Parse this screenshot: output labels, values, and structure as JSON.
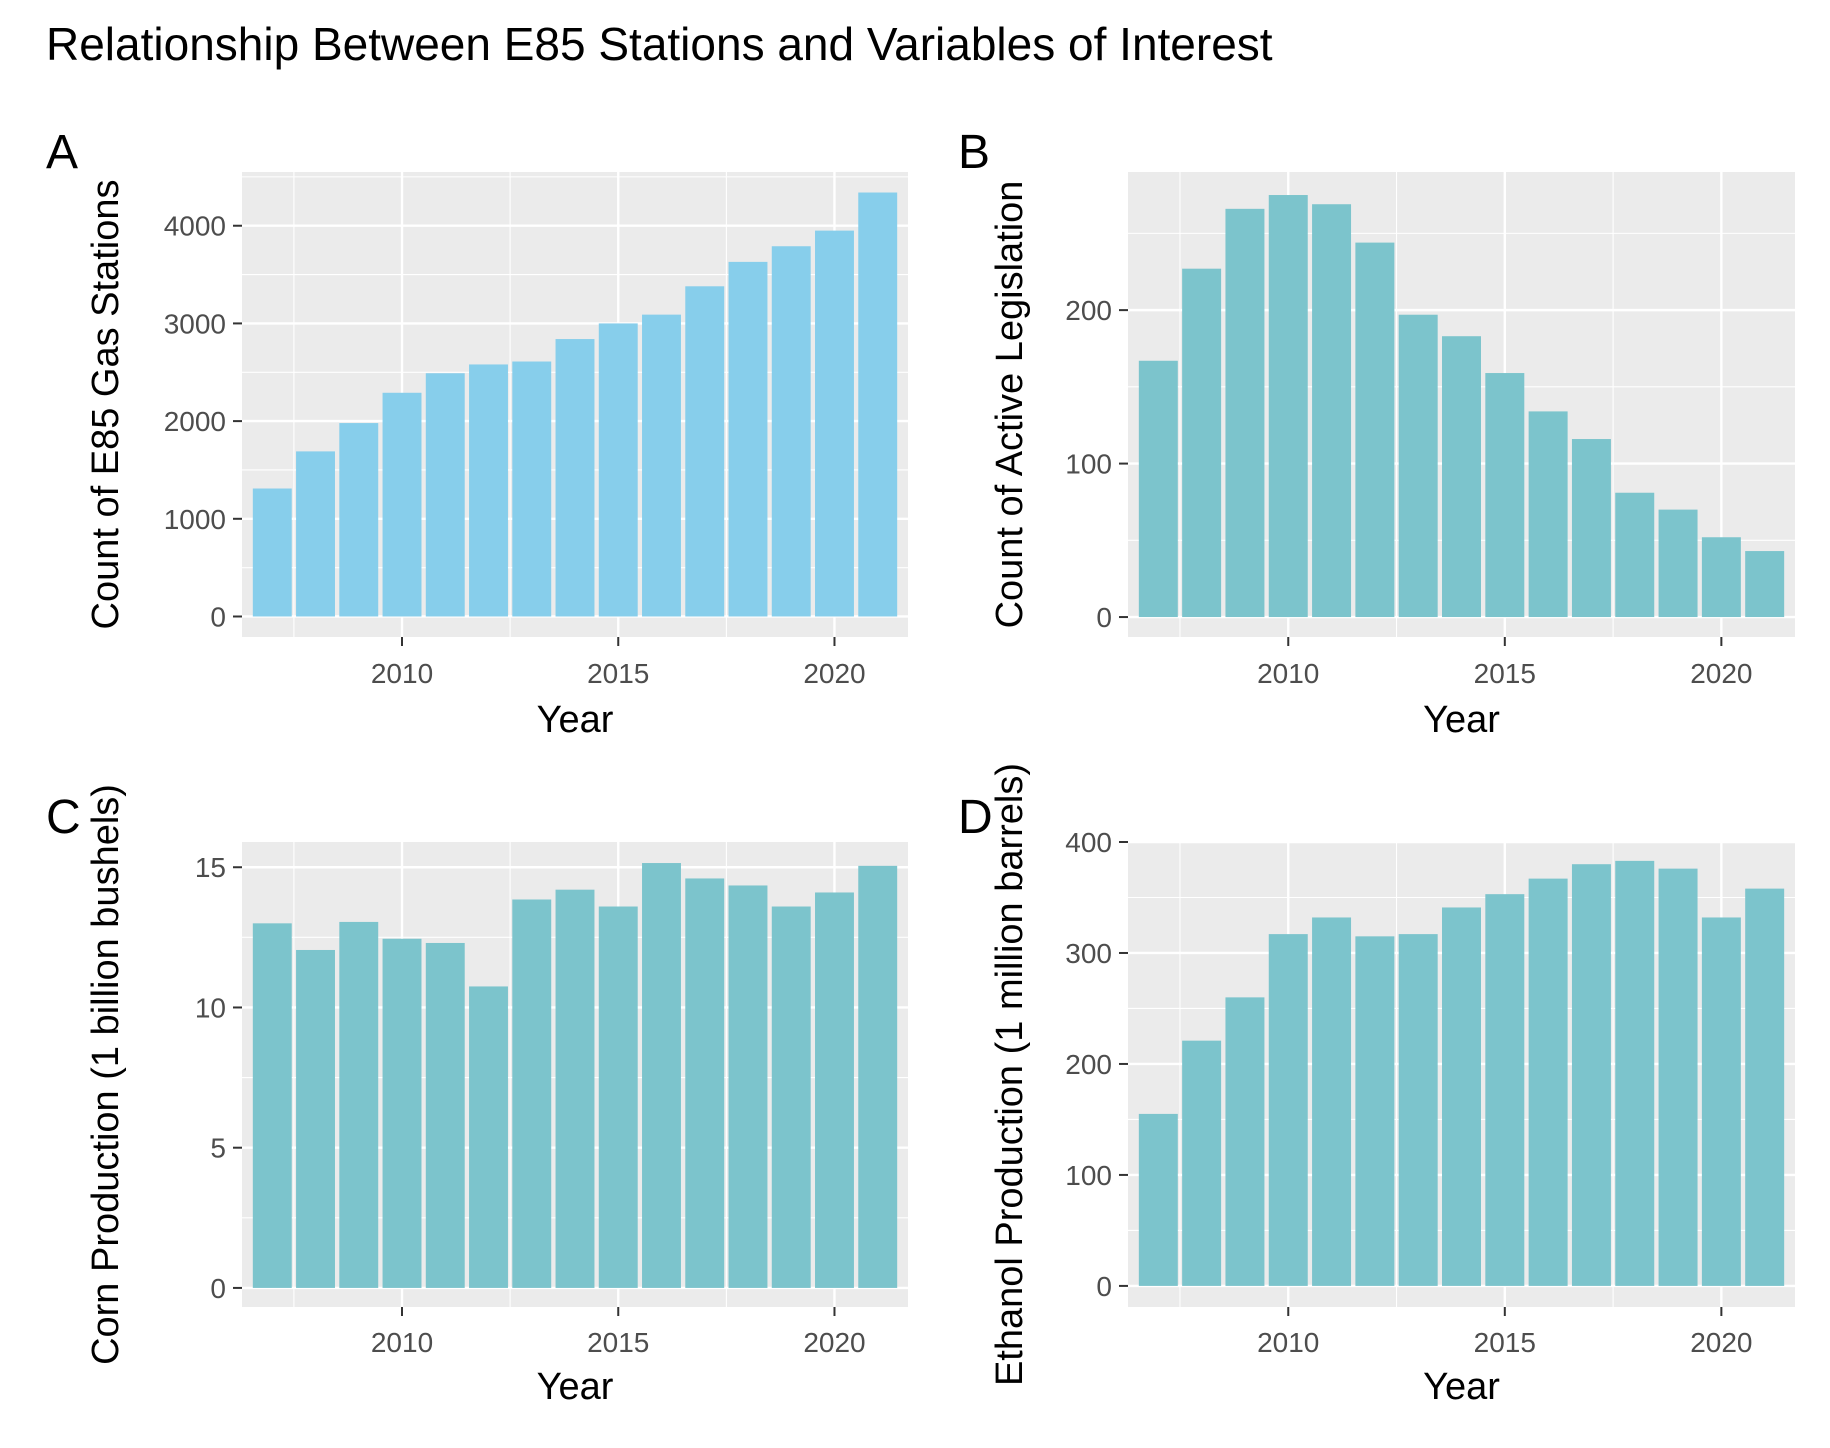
{
  "figure": {
    "title": "Relationship Between E85 Stations and Variables of Interest"
  },
  "chart_data": [
    {
      "panel": "A",
      "type": "bar",
      "xlabel": "Year",
      "ylabel": "Count of E85 Gas Stations",
      "x": [
        2007,
        2008,
        2009,
        2010,
        2011,
        2012,
        2013,
        2014,
        2015,
        2016,
        2017,
        2018,
        2019,
        2020,
        2021
      ],
      "values": [
        1310,
        1690,
        1980,
        2290,
        2490,
        2580,
        2610,
        2840,
        3000,
        3090,
        3380,
        3630,
        3790,
        3950,
        4340
      ],
      "xlim": [
        2006.3,
        2021.7
      ],
      "ylim": [
        -210,
        4550
      ],
      "xticks": [
        2010,
        2015,
        2020
      ],
      "yticks": [
        0,
        1000,
        2000,
        3000,
        4000
      ],
      "grid": true,
      "bar_color": "#87ceeb"
    },
    {
      "panel": "B",
      "type": "bar",
      "xlabel": "Year",
      "ylabel": "Count of Active Legislation",
      "x": [
        2007,
        2008,
        2009,
        2010,
        2011,
        2012,
        2013,
        2014,
        2015,
        2016,
        2017,
        2018,
        2019,
        2020,
        2021
      ],
      "values": [
        167,
        227,
        266,
        275,
        269,
        244,
        197,
        183,
        159,
        134,
        116,
        81,
        70,
        52,
        43
      ],
      "xlim": [
        2006.3,
        2021.7
      ],
      "ylim": [
        -13,
        290
      ],
      "xticks": [
        2010,
        2015,
        2020
      ],
      "yticks": [
        0,
        100,
        200
      ],
      "grid": true,
      "bar_color": "#7cc4cc"
    },
    {
      "panel": "C",
      "type": "bar",
      "xlabel": "Year",
      "ylabel": "Corn Production (1 billion bushels)",
      "x": [
        2007,
        2008,
        2009,
        2010,
        2011,
        2012,
        2013,
        2014,
        2015,
        2016,
        2017,
        2018,
        2019,
        2020,
        2021
      ],
      "values": [
        13.0,
        12.05,
        13.05,
        12.45,
        12.3,
        10.75,
        13.85,
        14.2,
        13.6,
        15.15,
        14.6,
        14.35,
        13.6,
        14.1,
        15.05
      ],
      "xlim": [
        2006.3,
        2021.7
      ],
      "ylim": [
        -0.68,
        15.9
      ],
      "xticks": [
        2010,
        2015,
        2020
      ],
      "yticks": [
        0,
        5,
        10,
        15
      ],
      "grid": true,
      "bar_color": "#7cc4cc"
    },
    {
      "panel": "D",
      "type": "bar",
      "xlabel": "Year",
      "ylabel": "Ethanol Production (1 million barrels)",
      "x": [
        2007,
        2008,
        2009,
        2010,
        2011,
        2012,
        2013,
        2014,
        2015,
        2016,
        2017,
        2018,
        2019,
        2020,
        2021
      ],
      "values": [
        155,
        221,
        260,
        317,
        332,
        315,
        317,
        341,
        353,
        367,
        380,
        383,
        376,
        332,
        358
      ],
      "xlim": [
        2006.3,
        2021.7
      ],
      "ylim": [
        -19,
        400
      ],
      "xticks": [
        2010,
        2015,
        2020
      ],
      "yticks": [
        0,
        100,
        200,
        300,
        400
      ],
      "grid": true,
      "bar_color": "#7cc4cc"
    }
  ]
}
